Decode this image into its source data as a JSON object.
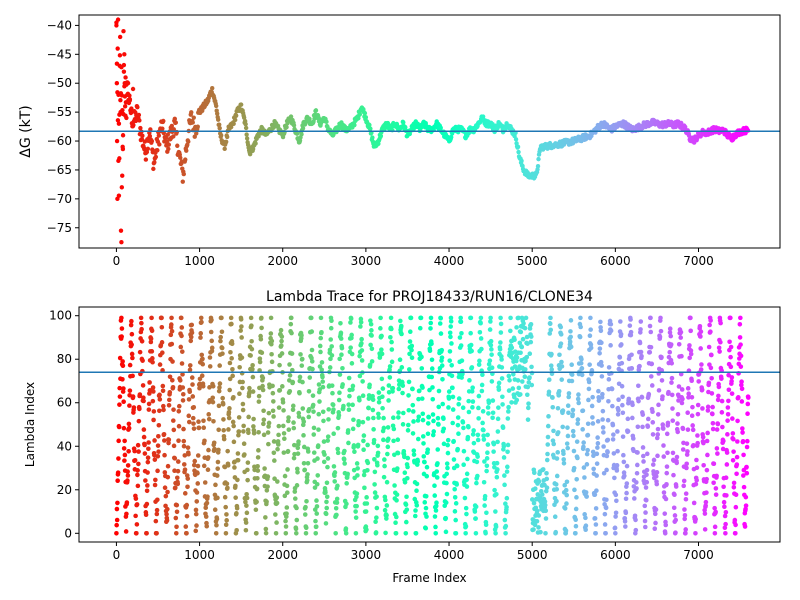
{
  "chart_data": [
    {
      "type": "scatter",
      "title": "",
      "xlabel": "",
      "ylabel": "ΔG (kT)",
      "xlim": [
        -450,
        7980
      ],
      "ylim": [
        -78.5,
        -38.2
      ],
      "xticks": [
        0,
        1000,
        2000,
        3000,
        4000,
        5000,
        6000,
        7000
      ],
      "xtick_labels": [
        "0",
        "1000",
        "2000",
        "3000",
        "4000",
        "5000",
        "6000",
        "7000"
      ],
      "yticks": [
        -75,
        -70,
        -65,
        -60,
        -55,
        -50,
        -45,
        -40
      ],
      "ytick_labels": [
        "−75",
        "−70",
        "−65",
        "−60",
        "−55",
        "−50",
        "−45",
        "−40"
      ],
      "hline": -58.3,
      "hline_color": "#1f77b4",
      "colormap": "rainbow",
      "x_range": [
        0,
        7600
      ],
      "series_points": [
        [
          0,
          -40
        ],
        [
          10,
          -50
        ],
        [
          20,
          -60
        ],
        [
          30,
          -70
        ],
        [
          40,
          -44
        ],
        [
          50,
          -56
        ],
        [
          60,
          -48
        ],
        [
          70,
          -54
        ],
        [
          80,
          -62
        ],
        [
          90,
          -46
        ],
        [
          100,
          -52
        ],
        [
          110,
          -58
        ],
        [
          120,
          -49
        ],
        [
          150,
          -53
        ],
        [
          200,
          -57
        ],
        [
          250,
          -55
        ],
        [
          300,
          -59
        ],
        [
          350,
          -62
        ],
        [
          400,
          -58
        ],
        [
          450,
          -64
        ],
        [
          500,
          -60
        ],
        [
          550,
          -57
        ],
        [
          600,
          -61
        ],
        [
          650,
          -59
        ],
        [
          700,
          -57
        ],
        [
          750,
          -62
        ],
        [
          800,
          -66
        ],
        [
          850,
          -60
        ],
        [
          900,
          -56
        ],
        [
          950,
          -58
        ],
        [
          1000,
          -55
        ],
        [
          1050,
          -54
        ],
        [
          1100,
          -53
        ],
        [
          1150,
          -51
        ],
        [
          1200,
          -54
        ],
        [
          1250,
          -59
        ],
        [
          1300,
          -61
        ],
        [
          1350,
          -58
        ],
        [
          1400,
          -57
        ],
        [
          1450,
          -55
        ],
        [
          1500,
          -54
        ],
        [
          1550,
          -57
        ],
        [
          1600,
          -62
        ],
        [
          1650,
          -61
        ],
        [
          1700,
          -59
        ],
        [
          1750,
          -58
        ],
        [
          1800,
          -59
        ],
        [
          1850,
          -58
        ],
        [
          1900,
          -57
        ],
        [
          1950,
          -58
        ],
        [
          2000,
          -59
        ],
        [
          2050,
          -57
        ],
        [
          2100,
          -56
        ],
        [
          2150,
          -58
        ],
        [
          2200,
          -60
        ],
        [
          2250,
          -57
        ],
        [
          2300,
          -56
        ],
        [
          2350,
          -57
        ],
        [
          2400,
          -55
        ],
        [
          2450,
          -57
        ],
        [
          2500,
          -56
        ],
        [
          2550,
          -58
        ],
        [
          2600,
          -59
        ],
        [
          2650,
          -58
        ],
        [
          2700,
          -57
        ],
        [
          2750,
          -58
        ],
        [
          2800,
          -58
        ],
        [
          2850,
          -57
        ],
        [
          2900,
          -56
        ],
        [
          2950,
          -54
        ],
        [
          3000,
          -56
        ],
        [
          3050,
          -58
        ],
        [
          3100,
          -61
        ],
        [
          3150,
          -60
        ],
        [
          3200,
          -58
        ],
        [
          3250,
          -57
        ],
        [
          3300,
          -58
        ],
        [
          3350,
          -57
        ],
        [
          3400,
          -58
        ],
        [
          3450,
          -57
        ],
        [
          3500,
          -59
        ],
        [
          3550,
          -58
        ],
        [
          3600,
          -57
        ],
        [
          3650,
          -58
        ],
        [
          3700,
          -57
        ],
        [
          3750,
          -58
        ],
        [
          3800,
          -58
        ],
        [
          3850,
          -57
        ],
        [
          3900,
          -58
        ],
        [
          3950,
          -59
        ],
        [
          4000,
          -60
        ],
        [
          4050,
          -58
        ],
        [
          4100,
          -58
        ],
        [
          4150,
          -58
        ],
        [
          4200,
          -59
        ],
        [
          4250,
          -58
        ],
        [
          4300,
          -58
        ],
        [
          4350,
          -57
        ],
        [
          4400,
          -56
        ],
        [
          4450,
          -57
        ],
        [
          4500,
          -57
        ],
        [
          4550,
          -58
        ],
        [
          4600,
          -57
        ],
        [
          4650,
          -58
        ],
        [
          4700,
          -57
        ],
        [
          4750,
          -58
        ],
        [
          4800,
          -59
        ],
        [
          4850,
          -63
        ],
        [
          4900,
          -65
        ],
        [
          4950,
          -66
        ],
        [
          5000,
          -66
        ],
        [
          5050,
          -66
        ],
        [
          5100,
          -61
        ],
        [
          5150,
          -61
        ],
        [
          5200,
          -60.8
        ],
        [
          5300,
          -60.6
        ],
        [
          5400,
          -60.3
        ],
        [
          5500,
          -60
        ],
        [
          5600,
          -59.5
        ],
        [
          5700,
          -59
        ],
        [
          5800,
          -57.5
        ],
        [
          5850,
          -57
        ],
        [
          5900,
          -57.5
        ],
        [
          5950,
          -58
        ],
        [
          6000,
          -57.5
        ],
        [
          6050,
          -57.2
        ],
        [
          6100,
          -57
        ],
        [
          6150,
          -57.5
        ],
        [
          6200,
          -58
        ],
        [
          6250,
          -57.8
        ],
        [
          6300,
          -57.5
        ],
        [
          6350,
          -57.2
        ],
        [
          6400,
          -57
        ],
        [
          6450,
          -56.8
        ],
        [
          6500,
          -57
        ],
        [
          6550,
          -57.2
        ],
        [
          6600,
          -57.1
        ],
        [
          6650,
          -57
        ],
        [
          6700,
          -57.3
        ],
        [
          6750,
          -57
        ],
        [
          6800,
          -57.4
        ],
        [
          6850,
          -58
        ],
        [
          6900,
          -59.5
        ],
        [
          6950,
          -59.8
        ],
        [
          7000,
          -59
        ],
        [
          7050,
          -58.5
        ],
        [
          7100,
          -58.6
        ],
        [
          7150,
          -58.2
        ],
        [
          7200,
          -58
        ],
        [
          7250,
          -58.3
        ],
        [
          7300,
          -58.1
        ],
        [
          7350,
          -59
        ],
        [
          7400,
          -59.5
        ],
        [
          7450,
          -58.8
        ],
        [
          7500,
          -58.4
        ],
        [
          7550,
          -58.2
        ],
        [
          7600,
          -58.1
        ]
      ]
    },
    {
      "type": "scatter",
      "title": "Lambda Trace for PROJ18433/RUN16/CLONE34",
      "xlabel": "Frame Index",
      "ylabel": "Lambda Index",
      "xlim": [
        -450,
        7980
      ],
      "ylim": [
        -4,
        104
      ],
      "xticks": [
        0,
        1000,
        2000,
        3000,
        4000,
        5000,
        6000,
        7000
      ],
      "xtick_labels": [
        "0",
        "1000",
        "2000",
        "3000",
        "4000",
        "5000",
        "6000",
        "7000"
      ],
      "yticks": [
        0,
        20,
        40,
        60,
        80,
        100
      ],
      "ytick_labels": [
        "0",
        "20",
        "40",
        "60",
        "80",
        "100"
      ],
      "hline": 74,
      "hline_color": "#1f77b4",
      "colormap": "rainbow",
      "x_range": [
        0,
        7600
      ],
      "lambda_range": [
        0,
        99
      ]
    }
  ]
}
